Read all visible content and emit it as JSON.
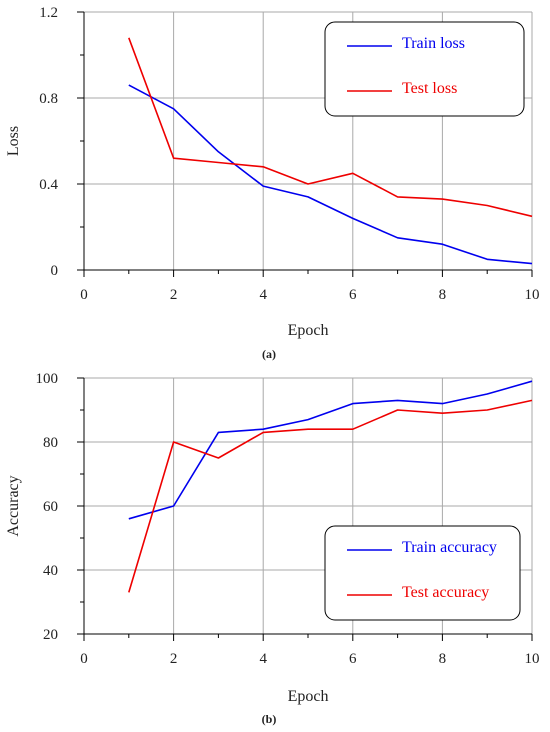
{
  "chart_data": [
    {
      "type": "line",
      "panel_label": "(a)",
      "xlabel": "Epoch",
      "ylabel": "Loss",
      "xlim": [
        0,
        10
      ],
      "ylim": [
        0,
        1.2
      ],
      "xticks": [
        0,
        2,
        4,
        6,
        8,
        10
      ],
      "yticks": [
        0,
        0.4,
        0.8,
        1.2
      ],
      "ytick_labels": [
        "0",
        "0.4",
        "0.8",
        "1.2"
      ],
      "grid": true,
      "legend_position": "top-right",
      "series": [
        {
          "name": "Train loss",
          "color": "#0000ee",
          "x": [
            1,
            2,
            3,
            4,
            5,
            6,
            7,
            8,
            9,
            10
          ],
          "y": [
            0.86,
            0.75,
            0.55,
            0.39,
            0.34,
            0.24,
            0.15,
            0.12,
            0.05,
            0.03
          ]
        },
        {
          "name": "Test loss",
          "color": "#ee0000",
          "x": [
            1,
            2,
            3,
            4,
            5,
            6,
            7,
            8,
            9,
            10
          ],
          "y": [
            1.08,
            0.52,
            0.5,
            0.48,
            0.4,
            0.45,
            0.34,
            0.33,
            0.3,
            0.25
          ]
        }
      ]
    },
    {
      "type": "line",
      "panel_label": "(b)",
      "xlabel": "Epoch",
      "ylabel": "Accuracy",
      "xlim": [
        0,
        10
      ],
      "ylim": [
        20,
        100
      ],
      "xticks": [
        0,
        2,
        4,
        6,
        8,
        10
      ],
      "yticks": [
        20,
        40,
        60,
        80,
        100
      ],
      "ytick_labels": [
        "20",
        "40",
        "60",
        "80",
        "100"
      ],
      "grid": true,
      "legend_position": "bottom-right",
      "series": [
        {
          "name": "Train accuracy",
          "color": "#0000ee",
          "x": [
            1,
            2,
            3,
            4,
            5,
            6,
            7,
            8,
            9,
            10
          ],
          "y": [
            56,
            60,
            83,
            84,
            87,
            92,
            93,
            92,
            95,
            99
          ]
        },
        {
          "name": "Test accuracy",
          "color": "#ee0000",
          "x": [
            1,
            2,
            3,
            4,
            5,
            6,
            7,
            8,
            9,
            10
          ],
          "y": [
            33,
            80,
            75,
            83,
            84,
            84,
            90,
            89,
            90,
            93
          ]
        }
      ]
    }
  ]
}
